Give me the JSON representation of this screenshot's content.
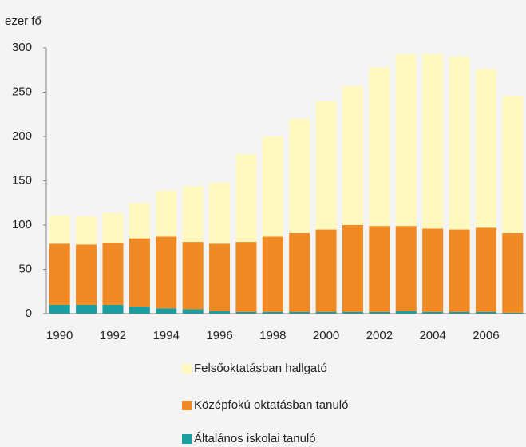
{
  "chart_data": {
    "type": "stacked_bar",
    "y_label": "ezer fő",
    "categories": [
      "1990",
      null,
      "1992",
      null,
      "1994",
      null,
      "1996",
      null,
      "1998",
      null,
      "2000",
      null,
      "2002",
      null,
      "2004",
      null,
      "2006",
      null
    ],
    "series": [
      {
        "name": "Általános iskolai tanuló",
        "color": "#1a9ea0",
        "values": [
          10,
          10,
          10,
          8,
          6,
          5,
          3,
          2,
          2,
          2,
          2,
          2,
          2,
          3,
          2,
          2,
          2,
          1
        ]
      },
      {
        "name": "Középfokú oktatásban tanuló",
        "color": "#f08a24",
        "values": [
          69,
          68,
          70,
          77,
          81,
          76,
          76,
          79,
          85,
          89,
          93,
          98,
          97,
          96,
          94,
          93,
          95,
          90
        ]
      },
      {
        "name": "Felsőoktatásban hallgató",
        "color": "#fff8bf",
        "values": [
          32,
          32,
          34,
          40,
          52,
          63,
          69,
          99,
          113,
          129,
          145,
          157,
          179,
          194,
          197,
          195,
          179,
          155
        ]
      }
    ],
    "ylim": [
      0,
      300
    ],
    "yticks": [
      0,
      50,
      100,
      150,
      200,
      250,
      300
    ]
  }
}
